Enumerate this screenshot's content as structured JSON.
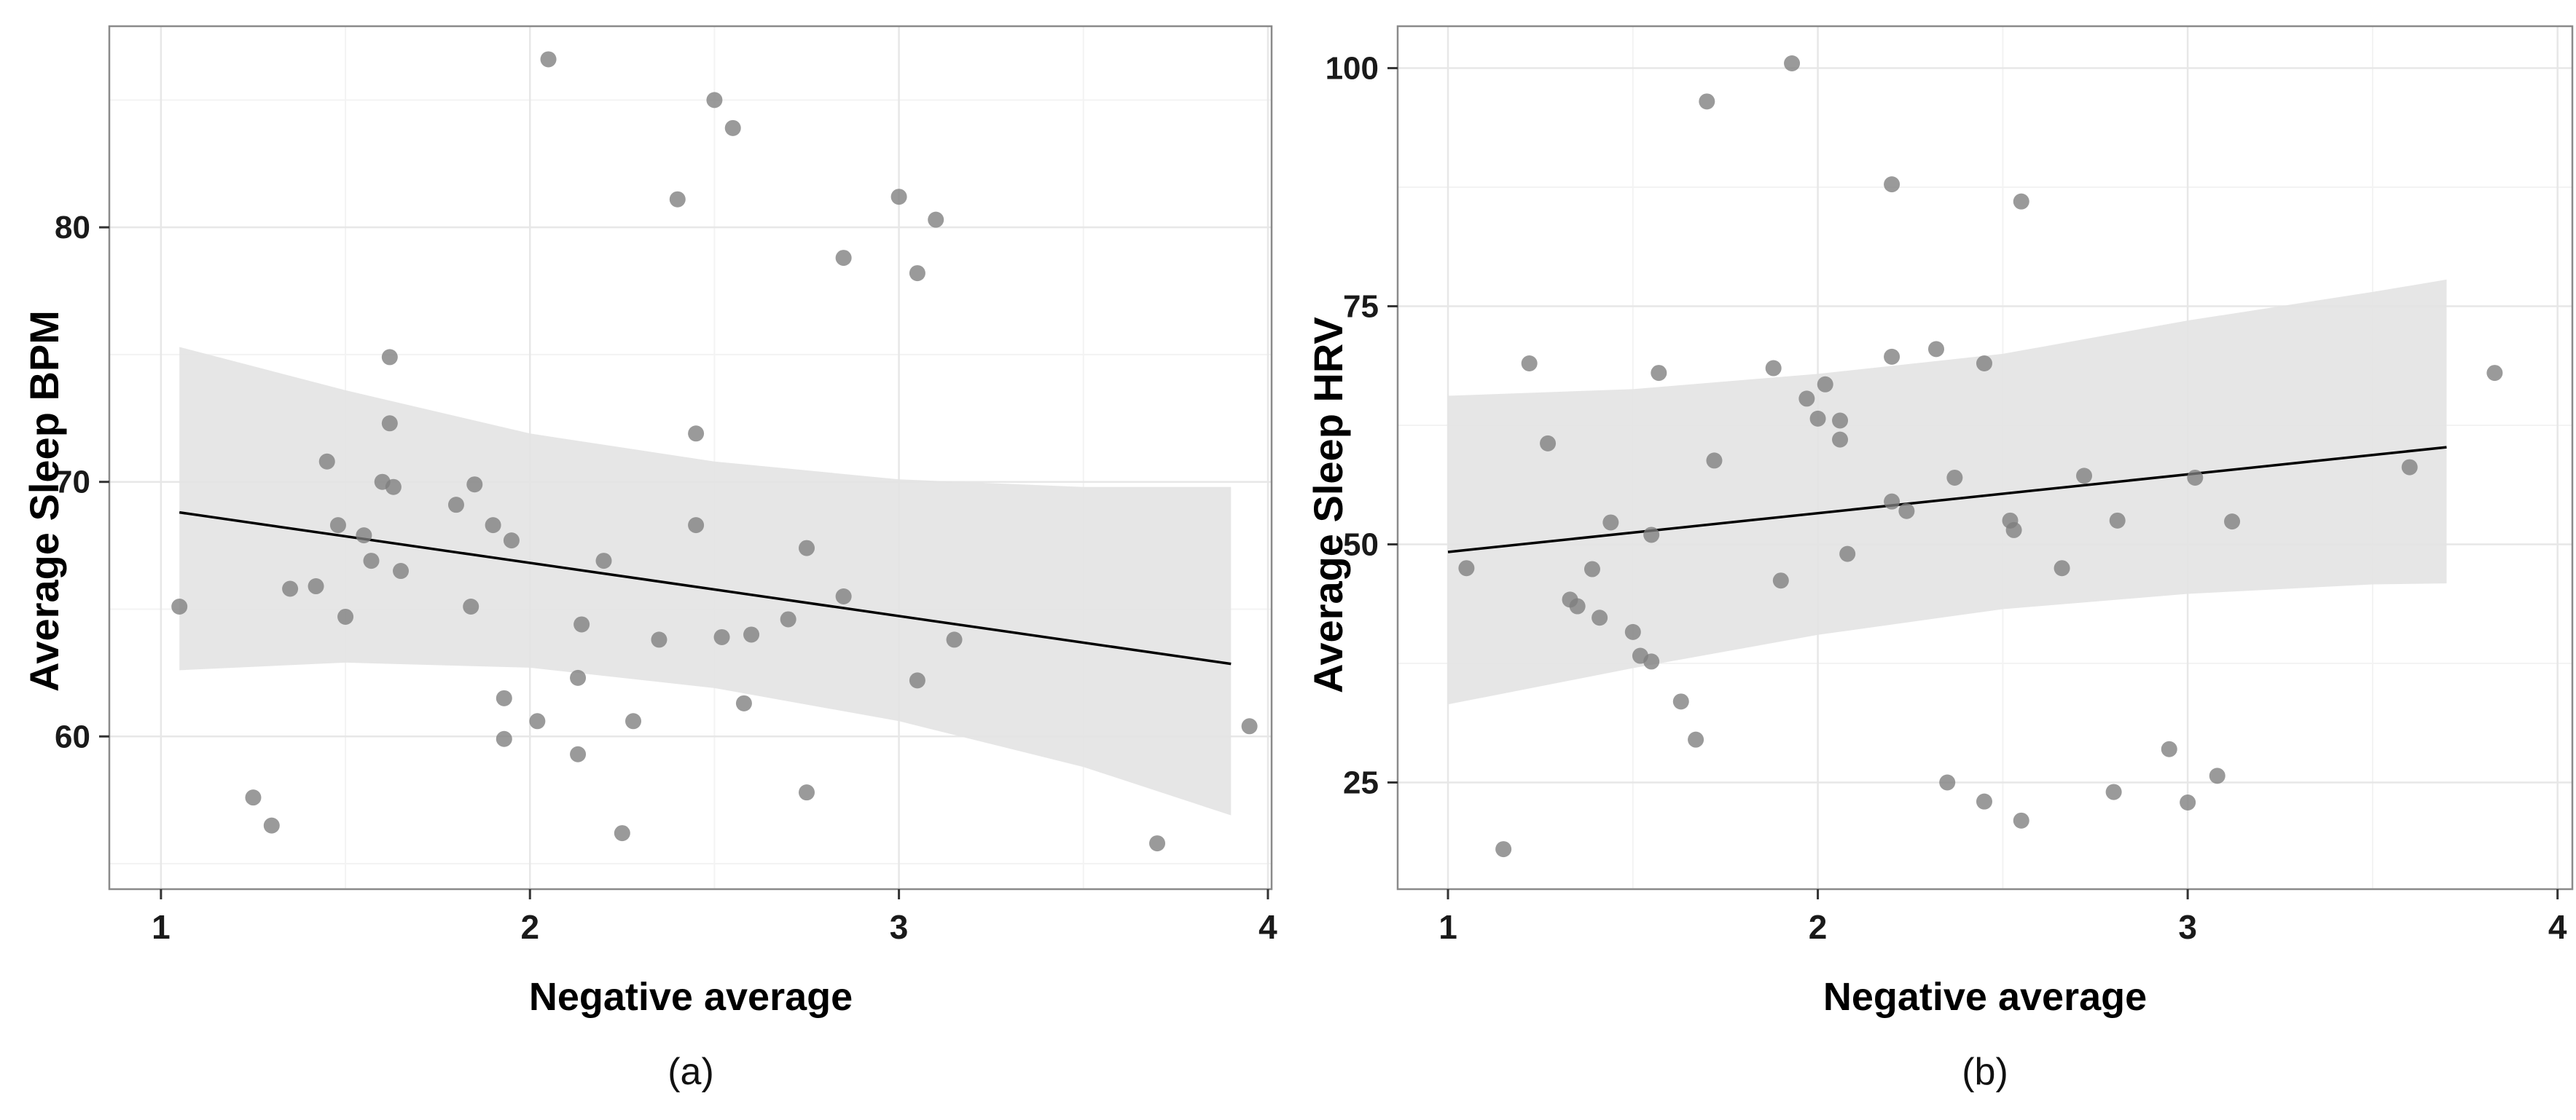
{
  "figure": {
    "background": "#ffffff",
    "caption_a": "(a)",
    "caption_b": "(b)"
  },
  "style": {
    "point_color": "#7d7d7d",
    "point_opacity": 0.78,
    "point_radius": 11,
    "band_color": "#e4e4e4",
    "band_opacity": 0.92,
    "line_color": "#000000",
    "line_width": 3.5,
    "grid_major_color": "#e7e7e7",
    "grid_minor_color": "#f3f3f3",
    "border_color": "#8a8a8a",
    "tick_color": "#333333",
    "tick_label_color": "#1a1a1a"
  },
  "chart_data": [
    {
      "type": "scatter",
      "panel": "a",
      "caption": "(a)",
      "xlabel": "Negative average",
      "ylabel": "Average Sleep BPM",
      "xlim": [
        0.86,
        4.01
      ],
      "ylim": [
        54.0,
        87.9
      ],
      "x_ticks": [
        1,
        2,
        3,
        4
      ],
      "y_ticks": [
        60,
        70,
        80
      ],
      "x_minor": [
        1.5,
        2.5,
        3.5
      ],
      "y_minor": [
        55,
        65,
        75,
        85
      ],
      "grid": true,
      "legend": "none",
      "points": [
        [
          2.05,
          86.6
        ],
        [
          2.5,
          85.0
        ],
        [
          2.55,
          83.9
        ],
        [
          2.4,
          81.1
        ],
        [
          3.0,
          81.2
        ],
        [
          3.1,
          80.3
        ],
        [
          2.85,
          78.8
        ],
        [
          3.05,
          78.2
        ],
        [
          1.62,
          74.9
        ],
        [
          1.62,
          72.3
        ],
        [
          2.45,
          71.9
        ],
        [
          1.45,
          70.8
        ],
        [
          1.6,
          70.0
        ],
        [
          1.63,
          69.8
        ],
        [
          1.85,
          69.9
        ],
        [
          1.8,
          69.1
        ],
        [
          1.48,
          68.3
        ],
        [
          1.55,
          67.9
        ],
        [
          1.9,
          68.3
        ],
        [
          2.45,
          68.3
        ],
        [
          1.95,
          67.7
        ],
        [
          2.75,
          67.4
        ],
        [
          1.57,
          66.9
        ],
        [
          2.2,
          66.9
        ],
        [
          1.65,
          66.5
        ],
        [
          1.35,
          65.8
        ],
        [
          1.42,
          65.9
        ],
        [
          1.84,
          65.1
        ],
        [
          1.05,
          65.1
        ],
        [
          2.85,
          65.5
        ],
        [
          1.5,
          64.7
        ],
        [
          2.14,
          64.4
        ],
        [
          2.7,
          64.6
        ],
        [
          2.6,
          64.0
        ],
        [
          3.15,
          63.8
        ],
        [
          2.35,
          63.8
        ],
        [
          2.52,
          63.9
        ],
        [
          3.05,
          62.2
        ],
        [
          2.13,
          62.3
        ],
        [
          1.93,
          61.5
        ],
        [
          2.28,
          60.6
        ],
        [
          2.02,
          60.6
        ],
        [
          2.58,
          61.3
        ],
        [
          1.93,
          59.9
        ],
        [
          2.13,
          59.3
        ],
        [
          3.95,
          60.4
        ],
        [
          2.75,
          57.8
        ],
        [
          1.25,
          57.6
        ],
        [
          1.3,
          56.5
        ],
        [
          2.25,
          56.2
        ],
        [
          3.7,
          55.8
        ]
      ],
      "regression": {
        "x1": 1.05,
        "y1": 68.8,
        "x2": 3.9,
        "y2": 62.85
      },
      "band": {
        "x": [
          1.05,
          1.5,
          2.0,
          2.5,
          3.0,
          3.5,
          3.9
        ],
        "upper": [
          75.3,
          73.6,
          71.9,
          70.8,
          70.1,
          69.8,
          69.8
        ],
        "lower": [
          62.6,
          62.9,
          62.7,
          61.9,
          60.6,
          58.8,
          56.9
        ]
      }
    },
    {
      "type": "scatter",
      "panel": "b",
      "caption": "(b)",
      "xlabel": "Negative average",
      "ylabel": "Average Sleep HRV",
      "xlim": [
        0.864,
        4.04
      ],
      "ylim": [
        13.8,
        104.4
      ],
      "x_ticks": [
        1,
        2,
        3,
        4
      ],
      "y_ticks": [
        25,
        50,
        75,
        100
      ],
      "x_minor": [
        1.5,
        2.5,
        3.5
      ],
      "y_minor": [
        37.5,
        62.5,
        87.5
      ],
      "grid": true,
      "legend": "none",
      "points": [
        [
          1.93,
          100.5
        ],
        [
          1.7,
          96.5
        ],
        [
          2.2,
          87.8
        ],
        [
          2.55,
          86.0
        ],
        [
          1.22,
          69.0
        ],
        [
          1.57,
          68.0
        ],
        [
          1.88,
          68.5
        ],
        [
          2.02,
          66.8
        ],
        [
          1.97,
          65.3
        ],
        [
          2.2,
          69.7
        ],
        [
          2.32,
          70.5
        ],
        [
          2.45,
          69.0
        ],
        [
          3.83,
          68.0
        ],
        [
          1.27,
          60.6
        ],
        [
          1.72,
          58.8
        ],
        [
          2.0,
          63.2
        ],
        [
          2.06,
          63.0
        ],
        [
          2.06,
          61.0
        ],
        [
          2.37,
          57.0
        ],
        [
          2.2,
          54.5
        ],
        [
          2.24,
          53.5
        ],
        [
          2.52,
          52.5
        ],
        [
          2.53,
          51.5
        ],
        [
          2.72,
          57.2
        ],
        [
          2.81,
          52.5
        ],
        [
          3.02,
          57.0
        ],
        [
          3.12,
          52.4
        ],
        [
          3.6,
          58.1
        ],
        [
          2.08,
          49.0
        ],
        [
          1.44,
          52.3
        ],
        [
          1.55,
          51.0
        ],
        [
          1.9,
          46.2
        ],
        [
          1.05,
          47.5
        ],
        [
          1.39,
          47.4
        ],
        [
          1.33,
          44.2
        ],
        [
          1.35,
          43.5
        ],
        [
          1.41,
          42.3
        ],
        [
          1.5,
          40.8
        ],
        [
          2.66,
          47.5
        ],
        [
          1.52,
          38.3
        ],
        [
          1.55,
          37.7
        ],
        [
          1.63,
          33.5
        ],
        [
          1.67,
          29.5
        ],
        [
          2.35,
          25.0
        ],
        [
          2.45,
          23.0
        ],
        [
          2.55,
          21.0
        ],
        [
          2.8,
          24.0
        ],
        [
          2.95,
          28.5
        ],
        [
          3.08,
          25.7
        ],
        [
          3.0,
          22.9
        ],
        [
          1.15,
          18.0
        ]
      ],
      "regression": {
        "x1": 1.0,
        "y1": 49.2,
        "x2": 3.7,
        "y2": 60.2
      },
      "band": {
        "x": [
          1.0,
          1.5,
          2.0,
          2.5,
          3.0,
          3.5,
          3.7
        ],
        "upper": [
          65.6,
          66.3,
          67.9,
          70.0,
          73.5,
          76.5,
          77.8
        ],
        "lower": [
          33.2,
          37.0,
          40.5,
          43.2,
          44.8,
          45.8,
          45.9
        ]
      }
    }
  ]
}
